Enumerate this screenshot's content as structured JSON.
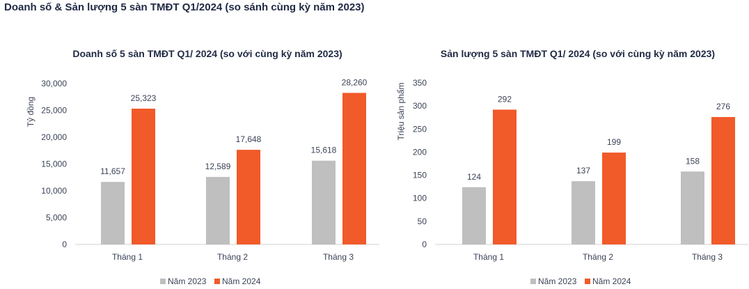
{
  "page_title": "Doanh số & Sản lượng 5 sàn TMĐT Q1/2024 (so sánh cùng kỳ năm 2023)",
  "colors": {
    "Năm 2023": "#bfbfbf",
    "Năm 2024": "#f15a29"
  },
  "chart_data": [
    {
      "type": "bar",
      "title": "Doanh số 5 sàn TMĐT Q1/ 2024 (so với cùng kỳ năm 2023)",
      "ylabel": "Tỷ đồng",
      "xlabel": "",
      "ylim": [
        0,
        30000
      ],
      "yticks": [
        0,
        5000,
        10000,
        15000,
        20000,
        25000,
        30000
      ],
      "ytick_labels": [
        "0",
        "5,000",
        "10,000",
        "15,000",
        "20,000",
        "25,000",
        "30,000"
      ],
      "categories": [
        "Tháng 1",
        "Tháng 2",
        "Tháng 3"
      ],
      "series": [
        {
          "name": "Năm 2023",
          "values": [
            11657,
            12589,
            15618
          ],
          "labels": [
            "11,657",
            "12,589",
            "15,618"
          ]
        },
        {
          "name": "Năm 2024",
          "values": [
            25323,
            17648,
            28260
          ],
          "labels": [
            "25,323",
            "17,648",
            "28,260"
          ]
        }
      ],
      "legend": "bottom",
      "grid": false
    },
    {
      "type": "bar",
      "title": "Sản lượng 5 sàn TMĐT Q1/ 2024 (so với cùng kỳ năm 2023)",
      "ylabel": "Triệu sản phẩm",
      "xlabel": "",
      "ylim": [
        0,
        350
      ],
      "yticks": [
        0,
        50,
        100,
        150,
        200,
        250,
        300,
        350
      ],
      "ytick_labels": [
        "0",
        "50",
        "100",
        "150",
        "200",
        "250",
        "300",
        "350"
      ],
      "categories": [
        "Tháng 1",
        "Tháng 2",
        "Tháng 3"
      ],
      "series": [
        {
          "name": "Năm 2023",
          "values": [
            124,
            137,
            158
          ],
          "labels": [
            "124",
            "137",
            "158"
          ]
        },
        {
          "name": "Năm 2024",
          "values": [
            292,
            199,
            276
          ],
          "labels": [
            "292",
            "199",
            "276"
          ]
        }
      ],
      "legend": "bottom",
      "grid": false
    }
  ]
}
